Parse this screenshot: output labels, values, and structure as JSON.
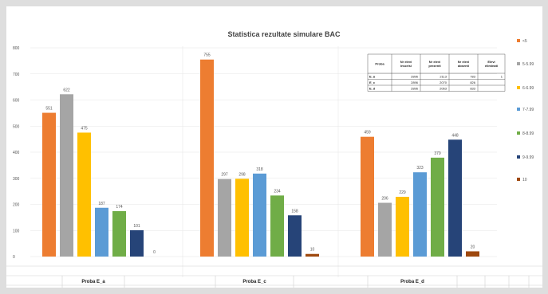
{
  "chart_data": {
    "type": "bar",
    "title": "Statistica rezultate simulare BAC",
    "categories": [
      "Proba E_a",
      "Proba E_c",
      "Proba E_d"
    ],
    "yticks": [
      "0",
      "100",
      "200",
      "300",
      "400",
      "500",
      "600",
      "700",
      "800"
    ],
    "ylim": [
      0,
      800
    ],
    "grid": true,
    "legend_position": "right",
    "series": [
      {
        "name": "<5",
        "color": "#ed7d31",
        "values": [
          551,
          755,
          459
        ],
        "labels": [
          "551",
          "755",
          "459"
        ]
      },
      {
        "name": "5-5.99",
        "color": "#a5a5a5",
        "values": [
          622,
          297,
          206
        ],
        "labels": [
          "622",
          "297",
          "206"
        ]
      },
      {
        "name": "6-6.99",
        "color": "#ffc000",
        "values": [
          475,
          298,
          229
        ],
        "labels": [
          "475",
          "298",
          "229"
        ]
      },
      {
        "name": "7-7.99",
        "color": "#5b9bd5",
        "values": [
          187,
          318,
          323
        ],
        "labels": [
          "187",
          "318",
          "323"
        ]
      },
      {
        "name": "8-8.99",
        "color": "#70ad47",
        "values": [
          174,
          234,
          379
        ],
        "labels": [
          "174",
          "234",
          "379"
        ]
      },
      {
        "name": "9-9.99",
        "color": "#264478",
        "values": [
          101,
          158,
          448
        ],
        "labels": [
          "101",
          "158",
          "448"
        ]
      },
      {
        "name": "10",
        "color": "#9e480e",
        "values": [
          0,
          10,
          20
        ],
        "labels": [
          "0",
          "10",
          "20"
        ]
      }
    ]
  },
  "table": {
    "headers": [
      "Proba",
      "Nr elevi inscrisi",
      "Nr elevi prezenti",
      "Nr elevi absenti",
      "Elevi eliminati"
    ],
    "rows": [
      [
        "E_a",
        "2896",
        "2113",
        "783",
        "1"
      ],
      [
        "E_c",
        "2896",
        "2070",
        "826",
        ""
      ],
      [
        "E_d",
        "2896",
        "2063",
        "833",
        ""
      ]
    ]
  }
}
